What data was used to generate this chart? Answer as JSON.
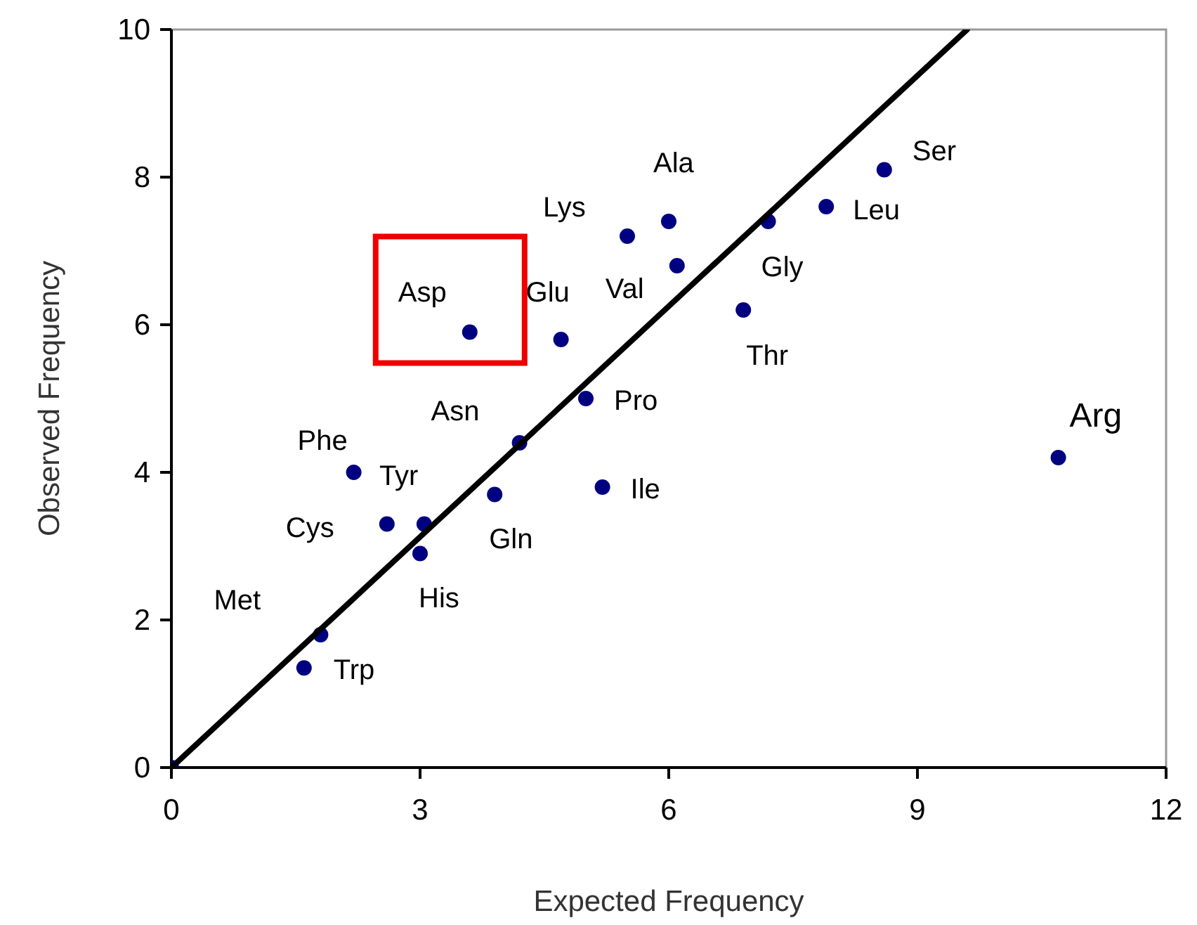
{
  "chart_data": {
    "type": "scatter",
    "xlabel": "Expected Frequency",
    "ylabel": "Observed Frequency",
    "xlim": [
      0,
      12
    ],
    "xticks": [
      0,
      3,
      6,
      9,
      12
    ],
    "ylim": [
      0,
      10
    ],
    "yticks": [
      0,
      2,
      4,
      6,
      8,
      10
    ],
    "grid": false,
    "series": [
      {
        "marker": "circle",
        "color": "#000080",
        "x": [
          0,
          1.6,
          1.8,
          2.2,
          2.6,
          3.05,
          3.0,
          3.6,
          3.9,
          4.2,
          4.7,
          5.0,
          5.2,
          5.5,
          6.0,
          6.1,
          7.2,
          6.9,
          7.9,
          8.6,
          10.7
        ],
        "values": [
          0,
          1.35,
          1.8,
          4.0,
          3.3,
          3.3,
          2.9,
          5.9,
          3.7,
          4.4,
          5.8,
          5.0,
          3.8,
          7.2,
          7.4,
          6.8,
          7.4,
          6.2,
          7.6,
          8.1,
          4.2
        ]
      },
      {
        "type": "line",
        "color": "#000000",
        "x": [
          0,
          9.6
        ],
        "values": [
          0,
          10
        ]
      }
    ],
    "annotations": [
      {
        "text": "Trp",
        "x": 1.6,
        "y": 1.35
      },
      {
        "text": "Met",
        "x": 1.8,
        "y": 1.8
      },
      {
        "text": "Phe",
        "x": 2.2,
        "y": 4.0
      },
      {
        "text": "Cys",
        "x": 2.6,
        "y": 3.3
      },
      {
        "text": "Tyr",
        "x": 3.05,
        "y": 3.3
      },
      {
        "text": "His",
        "x": 3.0,
        "y": 2.9
      },
      {
        "text": "Asp",
        "x": 3.6,
        "y": 5.9
      },
      {
        "text": "Gln",
        "x": 3.9,
        "y": 3.7
      },
      {
        "text": "Asn",
        "x": 4.2,
        "y": 4.4
      },
      {
        "text": "Glu",
        "x": 4.7,
        "y": 5.8
      },
      {
        "text": "Pro",
        "x": 5.0,
        "y": 5.0
      },
      {
        "text": "Ile",
        "x": 5.2,
        "y": 3.8
      },
      {
        "text": "Lys",
        "x": 5.5,
        "y": 7.2
      },
      {
        "text": "Ala",
        "x": 6.0,
        "y": 7.4
      },
      {
        "text": "Val",
        "x": 6.1,
        "y": 6.8
      },
      {
        "text": "Gly",
        "x": 7.2,
        "y": 7.4
      },
      {
        "text": "Thr",
        "x": 6.9,
        "y": 6.2
      },
      {
        "text": "Leu",
        "x": 7.9,
        "y": 7.6
      },
      {
        "text": "Ser",
        "x": 8.6,
        "y": 8.1
      },
      {
        "text": "Arg",
        "x": 10.7,
        "y": 4.2
      }
    ]
  }
}
